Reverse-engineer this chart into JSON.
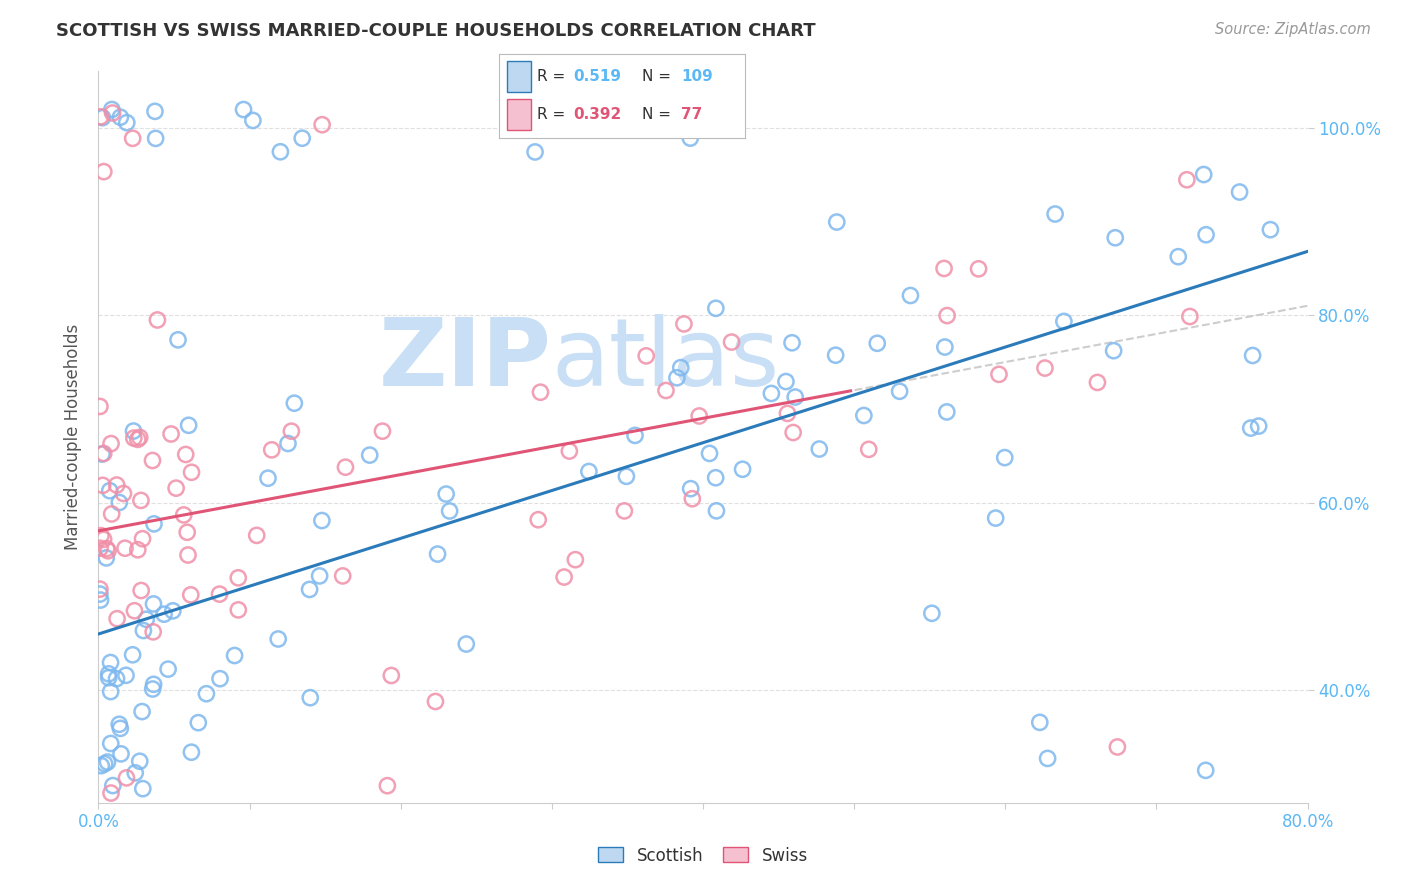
{
  "title": "SCOTTISH VS SWISS MARRIED-COUPLE HOUSEHOLDS CORRELATION CHART",
  "source": "Source: ZipAtlas.com",
  "ylabel": "Married-couple Households",
  "xlim": [
    0.0,
    0.8
  ],
  "ylim": [
    0.28,
    1.06
  ],
  "scottish_R": 0.519,
  "scottish_N": 109,
  "swiss_R": 0.392,
  "swiss_N": 77,
  "scottish_color": "#7EB8EE",
  "swiss_color": "#F090A8",
  "scottish_line_color": "#2B7BBA",
  "swiss_line_color": "#E05575",
  "dashed_line_color": "#C8C8C8",
  "background_color": "#FFFFFF",
  "grid_color": "#DDDDDD",
  "watermark_color": "#C8DFF5",
  "legend_box_color_scottish": "#BDD8F0",
  "legend_box_color_swiss": "#F5C0D0",
  "ytick_color": "#5BB8F5",
  "xtick_color": "#5BB8F5",
  "label_color": "#555555",
  "source_color": "#999999",
  "title_color": "#333333"
}
